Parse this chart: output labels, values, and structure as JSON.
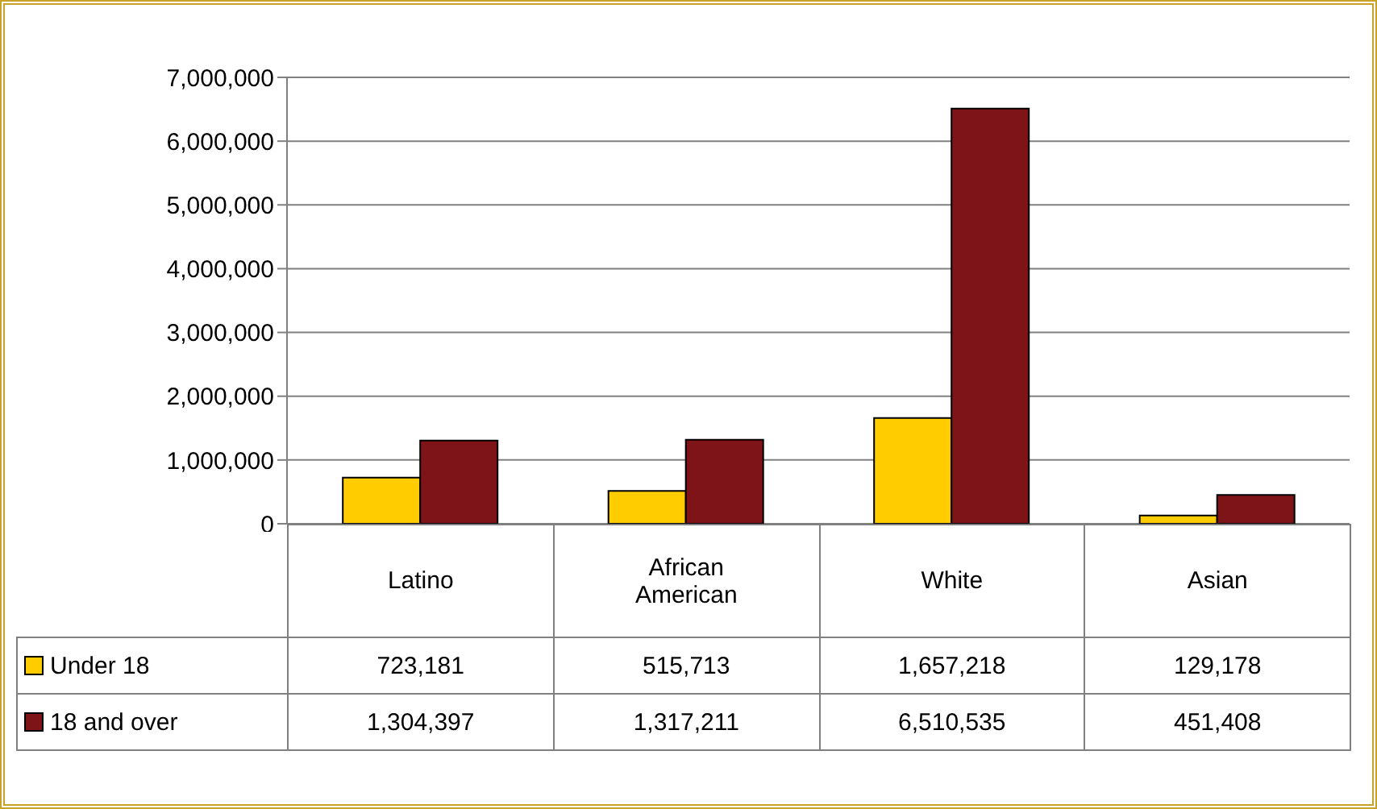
{
  "chart_data": {
    "type": "bar",
    "categories": [
      "Latino",
      "African American",
      "White",
      "Asian"
    ],
    "series": [
      {
        "name": "Under 18",
        "color": "#ffcc00",
        "values": [
          723181,
          515713,
          1657218,
          129178
        ],
        "value_labels": [
          "723,181",
          "515,713",
          "1,657,218",
          "129,178"
        ]
      },
      {
        "name": "18 and over",
        "color": "#7f1418",
        "values": [
          1304397,
          1317211,
          6510535,
          451408
        ],
        "value_labels": [
          "1,304,397",
          "1,317,211",
          "6,510,535",
          "451,408"
        ]
      }
    ],
    "ylim": [
      0,
      7000000
    ],
    "yticks": [
      {
        "value": 0,
        "label": "0"
      },
      {
        "value": 1000000,
        "label": "1,000,000"
      },
      {
        "value": 2000000,
        "label": "2,000,000"
      },
      {
        "value": 3000000,
        "label": "3,000,000"
      },
      {
        "value": 4000000,
        "label": "4,000,000"
      },
      {
        "value": 5000000,
        "label": "5,000,000"
      },
      {
        "value": 6000000,
        "label": "6,000,000"
      },
      {
        "value": 7000000,
        "label": "7,000,000"
      }
    ],
    "grid": "y",
    "legend": "bottom left"
  }
}
